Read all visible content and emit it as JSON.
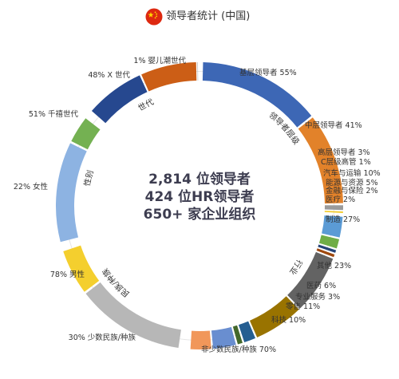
{
  "header": {
    "title": "领导者统计 (中国)",
    "flag_icon": "china-flag-icon"
  },
  "center": {
    "line1": "2,814 位领导者",
    "line2": "424 位HR领导者",
    "line3": "650+ 家企业组织"
  },
  "chart_data": {
    "type": "donut",
    "rings": [
      {
        "group": "领导者层级",
        "segments": [
          {
            "label": "基层领导者 55%",
            "value": 55,
            "color": "#3d67b5"
          },
          {
            "label": "中层领导者 41%",
            "value": 41,
            "color": "#e2822a"
          },
          {
            "label": "高层领导者 3%",
            "value": 3,
            "color": "#9b9b9b"
          },
          {
            "label": "C层级高管 1%",
            "value": 1,
            "color": "#f2cc2e"
          }
        ]
      },
      {
        "group": "行业",
        "segments": [
          {
            "label": "汽车与运输 10%",
            "value": 10,
            "color": "#5b9bd5"
          },
          {
            "label": "能源与资源 5%",
            "value": 5,
            "color": "#70ad47"
          },
          {
            "label": "金融与保险 2%",
            "value": 2,
            "color": "#264478"
          },
          {
            "label": "医疗 2%",
            "value": 2,
            "color": "#9e480e"
          },
          {
            "label": "制造 27%",
            "value": 27,
            "color": "#636363"
          },
          {
            "label": "其他 23%",
            "value": 23,
            "color": "#997300"
          },
          {
            "label": "医药 6%",
            "value": 6,
            "color": "#255e91"
          },
          {
            "label": "专业服务 3%",
            "value": 3,
            "color": "#43682b"
          },
          {
            "label": "零售 11%",
            "value": 11,
            "color": "#698ed0"
          },
          {
            "label": "科技 10%",
            "value": 10,
            "color": "#f1975a"
          }
        ]
      },
      {
        "group": "民族/种族",
        "segments": [
          {
            "label": "非少数民族/种族 70%",
            "value": 70,
            "color": "#b7b7b7"
          },
          {
            "label": "30% 少数民族/种族",
            "value": 30,
            "color": "#f4cf2e"
          }
        ]
      },
      {
        "group": "性别",
        "segments": [
          {
            "label": "78% 男性",
            "value": 78,
            "color": "#8db3e2"
          },
          {
            "label": "22% 女性",
            "value": 22,
            "color": "#74b152"
          }
        ]
      },
      {
        "group": "世代",
        "segments": [
          {
            "label": "51% 千禧世代",
            "value": 51,
            "color": "#26488f"
          },
          {
            "label": "48% X 世代",
            "value": 48,
            "color": "#cc5e16"
          },
          {
            "label": "1% 婴儿潮世代",
            "value": 1,
            "color": "#a8a8a8"
          }
        ]
      }
    ]
  }
}
